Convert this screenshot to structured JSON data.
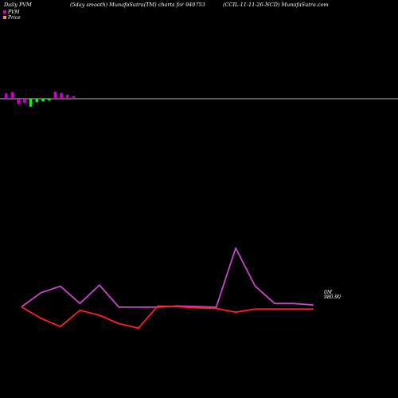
{
  "header": {
    "left": "Daily PVM",
    "middle": "(5day smooth) MunafaSutra(TM) charts for 940753",
    "right": "(CCIL-11-11-26-NCD) MunafaSutra.com"
  },
  "colors": {
    "background": "#000000",
    "pvm_positive": "#cc00cc",
    "pvm_negative": "#00ff00",
    "price_line": "#ff2222",
    "pvm_line": "#cc44cc",
    "baseline": "#ffffff"
  },
  "chart_data": [
    {
      "type": "bar",
      "legend": [
        "PVM",
        "Price"
      ],
      "legend_placement": "top-left",
      "series": [
        {
          "name": "PVM",
          "values": [
            1.2,
            1.5,
            -1.2,
            -1.0,
            -1.8,
            -0.8,
            -0.6,
            -0.4,
            1.6,
            1.3,
            0.9,
            0.6
          ],
          "colors": [
            "pos",
            "pos",
            "pos",
            "pos",
            "neg",
            "neg",
            "neg",
            "neg",
            "pos",
            "pos",
            "pos",
            "pos"
          ]
        }
      ],
      "ylim": [
        -2,
        2
      ]
    },
    {
      "type": "line",
      "x": [
        0,
        1,
        2,
        3,
        4,
        5,
        6,
        7,
        8,
        9,
        10,
        11,
        12,
        13,
        14,
        15
      ],
      "series": [
        {
          "name": "PVM",
          "values": [
            980.9,
            985.5,
            987.6,
            982.0,
            988.0,
            980.8,
            980.8,
            980.8,
            981.2,
            981.0,
            980.8,
            1000.0,
            987.6,
            982.0,
            982.0,
            981.5
          ]
        },
        {
          "name": "Price",
          "values": [
            980.9,
            977.2,
            974.5,
            979.8,
            978.2,
            975.5,
            974.0,
            981.2,
            981.0,
            980.6,
            980.4,
            979.2,
            980.2,
            980.2,
            980.2,
            980.2
          ]
        }
      ],
      "ylim": [
        972,
        1003
      ],
      "annotations": [
        {
          "text": "0M",
          "series": "PVM"
        },
        {
          "text": "980.90",
          "series": "Price"
        }
      ]
    }
  ]
}
